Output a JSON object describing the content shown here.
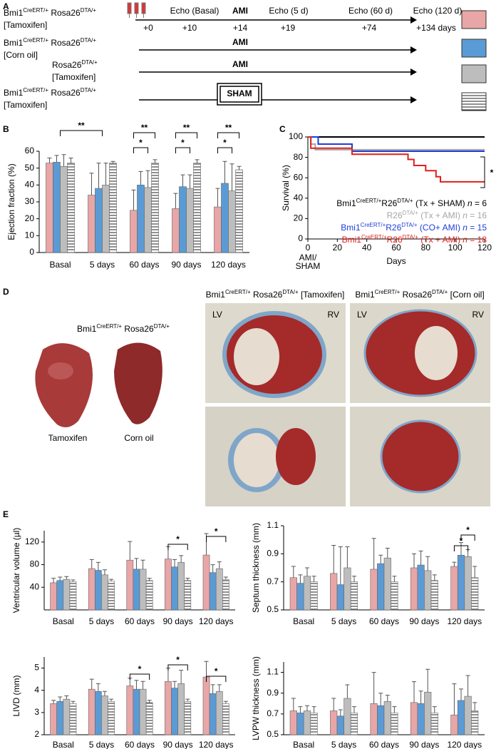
{
  "panel_labels": [
    "A",
    "B",
    "C",
    "D",
    "E"
  ],
  "timeline": {
    "start": "+0",
    "events": [
      {
        "label": "Echo (Basal)",
        "day": "+10"
      },
      {
        "label": "AMI",
        "day": "+14"
      },
      {
        "label": "Echo (5 d)",
        "day": "+19"
      },
      {
        "label": "Echo (60 d)",
        "day": "+74"
      },
      {
        "label": "Echo (120 d)",
        "day": "+134 days"
      }
    ],
    "rows": [
      {
        "genotype": [
          {
            "t": "Bmi1"
          },
          {
            "t": "CreERT/+",
            "sup": true
          },
          {
            "t": " Rosa26"
          },
          {
            "t": "DTA/+",
            "sup": true
          }
        ],
        "treatment": "[Tamoxifen]",
        "color": "#e8a6a6"
      },
      {
        "genotype": [
          {
            "t": "Bmi1"
          },
          {
            "t": "CreERT/+",
            "sup": true
          },
          {
            "t": " Rosa26"
          },
          {
            "t": "DTA/+",
            "sup": true
          }
        ],
        "treatment": "[Corn oil]",
        "event": "AMI",
        "color": "#5b9bd5"
      },
      {
        "genotype": [
          {
            "t": "Rosa26"
          },
          {
            "t": "DTA/+",
            "sup": true
          }
        ],
        "treatment": "[Tamoxifen]",
        "event": "AMI",
        "color": "#bdbdbd"
      },
      {
        "genotype": [
          {
            "t": "Bmi1"
          },
          {
            "t": "CreERT/+",
            "sup": true
          },
          {
            "t": " Rosa26"
          },
          {
            "t": "DTA/+",
            "sup": true
          }
        ],
        "treatment": "[Tamoxifen]",
        "event": "SHAM",
        "color": "#ffffff",
        "hatch": true
      }
    ]
  },
  "chart_data": [
    {
      "type": "bar",
      "y_label": "Ejection fraction (%)",
      "categories": [
        "Basal",
        "5 days",
        "60 days",
        "90 days",
        "120 days"
      ],
      "ylim": [
        0,
        60
      ],
      "yticks": [
        0,
        10,
        20,
        30,
        40,
        50,
        60
      ],
      "series": [
        {
          "color": "#e8a6a6",
          "values": [
            53,
            34,
            25,
            26,
            27
          ],
          "errors": [
            3,
            13,
            12,
            9,
            11
          ]
        },
        {
          "color": "#5b9bd5",
          "values": [
            53.5,
            38,
            40,
            39,
            41
          ],
          "errors": [
            4,
            15,
            8,
            7,
            13
          ]
        },
        {
          "color": "#bdbdbd",
          "values": [
            51,
            40,
            38.5,
            38,
            36.5
          ],
          "errors": [
            7,
            13,
            10,
            8,
            16
          ]
        },
        {
          "color": "#ffffff",
          "hatch": true,
          "values": [
            53,
            53,
            53,
            53,
            49
          ],
          "errors": [
            3,
            1,
            2,
            2,
            2
          ]
        }
      ],
      "annotations": [
        "**",
        "*",
        "**",
        "*",
        "**",
        "*",
        "**"
      ]
    },
    {
      "type": "line",
      "y_label": "Survival (%)",
      "x_label": "Days",
      "x_start_label": [
        "AMI/",
        "SHAM"
      ],
      "xlim": [
        0,
        120
      ],
      "xticks": [
        0,
        20,
        40,
        60,
        80,
        100,
        120
      ],
      "ylim": [
        0,
        100
      ],
      "yticks": [
        0,
        20,
        40,
        60,
        80,
        100
      ],
      "series": [
        {
          "name": [
            {
              "t": "Bmi1"
            },
            {
              "t": "CreERT/+",
              "sup": true
            },
            {
              "t": "R26"
            },
            {
              "t": "DTA/+",
              "sup": true
            },
            {
              "t": " (Tx + SHAM) "
            },
            {
              "t": "n",
              "italic": true
            },
            {
              "t": " = 6"
            }
          ],
          "color": "#000000",
          "x": [
            0,
            120
          ],
          "values": [
            100,
            100
          ]
        },
        {
          "name": [
            {
              "t": "R26"
            },
            {
              "t": "DTA/+",
              "sup": true
            },
            {
              "t": " (Tx + AMI) "
            },
            {
              "t": "n",
              "italic": true
            },
            {
              "t": " = 16"
            }
          ],
          "color": "#a6a6a6",
          "x": [
            0,
            2,
            2,
            5,
            5,
            120
          ],
          "values": [
            100,
            100,
            93,
            93,
            87.5,
            87.5
          ]
        },
        {
          "name": [
            {
              "t": "Bmi1"
            },
            {
              "t": "CreERT/+",
              "sup": true
            },
            {
              "t": "R26"
            },
            {
              "t": "DTA/+",
              "sup": true
            },
            {
              "t": " (CO+ AMI) "
            },
            {
              "t": "n",
              "italic": true
            },
            {
              "t": " = 15"
            }
          ],
          "color": "#1f3fd6",
          "x": [
            0,
            7,
            7,
            30,
            30,
            120
          ],
          "values": [
            100,
            100,
            93,
            93,
            86,
            86
          ]
        },
        {
          "name": [
            {
              "t": "Bmi1"
            },
            {
              "t": "CreERT/+",
              "sup": true
            },
            {
              "t": "R26"
            },
            {
              "t": "DTA/+",
              "sup": true
            },
            {
              "t": " (Tx + AMI) "
            },
            {
              "t": "n",
              "italic": true
            },
            {
              "t": " = 18"
            }
          ],
          "color": "#e0201b",
          "x": [
            0,
            2,
            2,
            30,
            30,
            68,
            68,
            72,
            72,
            80,
            80,
            87,
            87,
            90,
            90,
            120
          ],
          "values": [
            100,
            100,
            89,
            89,
            83,
            83,
            78,
            78,
            72,
            72,
            67,
            67,
            61,
            61,
            56,
            56
          ]
        }
      ],
      "annotations": [
        "*"
      ]
    },
    {
      "type": "bar",
      "y_label": "Ventricular volume (µl)",
      "categories": [
        "Basal",
        "5 days",
        "60 days",
        "90 days",
        "120 days"
      ],
      "ylim": [
        0,
        140
      ],
      "yticks": [
        40,
        80,
        120
      ],
      "series": [
        {
          "color": "#e8a6a6",
          "values": [
            48,
            73,
            88,
            90,
            97
          ],
          "errors": [
            8,
            16,
            33,
            22,
            38
          ]
        },
        {
          "color": "#5b9bd5",
          "values": [
            52,
            70,
            72,
            76,
            66
          ],
          "errors": [
            6,
            14,
            19,
            13,
            14
          ]
        },
        {
          "color": "#bdbdbd",
          "values": [
            54,
            62,
            72,
            84,
            73
          ],
          "errors": [
            5,
            9,
            16,
            12,
            12
          ]
        },
        {
          "color": "#ffffff",
          "hatch": true,
          "values": [
            50,
            51,
            52,
            52,
            54
          ],
          "errors": [
            3,
            3,
            4,
            4,
            4
          ]
        }
      ],
      "annotations": [
        "*",
        "*"
      ]
    },
    {
      "type": "bar",
      "y_label": "Septum thickness (mm)",
      "categories": [
        "Basal",
        "5 days",
        "60 days",
        "90 days",
        "120 days"
      ],
      "ylim": [
        0.5,
        1.1
      ],
      "yticks": [
        0.5,
        0.7,
        0.9,
        1.1
      ],
      "series": [
        {
          "color": "#e8a6a6",
          "values": [
            0.73,
            0.76,
            0.79,
            0.8,
            0.81
          ],
          "errors": [
            0.08,
            0.2,
            0.22,
            0.1,
            0.03
          ]
        },
        {
          "color": "#5b9bd5",
          "values": [
            0.69,
            0.68,
            0.83,
            0.82,
            0.89
          ],
          "errors": [
            0.06,
            0.27,
            0.06,
            0.1,
            0.09
          ]
        },
        {
          "color": "#bdbdbd",
          "values": [
            0.74,
            0.8,
            0.87,
            0.78,
            0.88
          ],
          "errors": [
            0.06,
            0.15,
            0.07,
            0.1,
            0.05
          ]
        },
        {
          "color": "#ffffff",
          "hatch": true,
          "values": [
            0.7,
            0.7,
            0.7,
            0.71,
            0.73
          ],
          "errors": [
            0.04,
            0.04,
            0.04,
            0.04,
            0.08
          ]
        }
      ],
      "annotations": [
        "*",
        "*"
      ]
    },
    {
      "type": "bar",
      "y_label": "LIVD (mm)",
      "categories": [
        "Basal",
        "5 days",
        "60 days",
        "90 days",
        "120 days"
      ],
      "ylim": [
        2,
        5.5
      ],
      "yticks": [
        2,
        3,
        4,
        5
      ],
      "series": [
        {
          "color": "#e8a6a6",
          "values": [
            3.4,
            4.05,
            4.2,
            4.4,
            4.6
          ],
          "errors": [
            0.15,
            0.45,
            0.35,
            0.6,
            0.7
          ]
        },
        {
          "color": "#5b9bd5",
          "values": [
            3.5,
            3.95,
            4.05,
            4.1,
            3.85
          ],
          "errors": [
            0.2,
            0.35,
            0.4,
            0.3,
            0.4
          ]
        },
        {
          "color": "#bdbdbd",
          "values": [
            3.6,
            3.75,
            4.05,
            4.3,
            3.95
          ],
          "errors": [
            0.15,
            0.2,
            0.35,
            0.6,
            0.3
          ]
        },
        {
          "color": "#ffffff",
          "hatch": true,
          "values": [
            3.4,
            3.5,
            3.45,
            3.5,
            3.4
          ],
          "errors": [
            0.1,
            0.1,
            0.1,
            0.1,
            0.1
          ]
        }
      ],
      "annotations": [
        "*",
        "*",
        "*"
      ]
    },
    {
      "type": "bar",
      "y_label": "LVPW thickness (mm)",
      "categories": [
        "Basal",
        "5 days",
        "60 days",
        "90 days",
        "120 days"
      ],
      "ylim": [
        0.5,
        1.2
      ],
      "yticks": [
        0.5,
        0.7,
        0.9,
        1.1
      ],
      "series": [
        {
          "color": "#e8a6a6",
          "values": [
            0.73,
            0.73,
            0.8,
            0.81,
            0.69
          ],
          "errors": [
            0.12,
            0.12,
            0.3,
            0.2,
            0.3
          ]
        },
        {
          "color": "#5b9bd5",
          "values": [
            0.71,
            0.68,
            0.78,
            0.8,
            0.83
          ],
          "errors": [
            0.06,
            0.06,
            0.12,
            0.12,
            0.11
          ]
        },
        {
          "color": "#bdbdbd",
          "values": [
            0.73,
            0.85,
            0.82,
            0.91,
            0.87
          ],
          "errors": [
            0.05,
            0.13,
            0.06,
            0.22,
            0.2
          ]
        },
        {
          "color": "#ffffff",
          "hatch": true,
          "values": [
            0.71,
            0.71,
            0.71,
            0.71,
            0.73
          ],
          "errors": [
            0.06,
            0.06,
            0.06,
            0.06,
            0.08
          ]
        }
      ],
      "annotations": []
    }
  ],
  "heart_photos": {
    "title": [
      {
        "t": "Bmi1"
      },
      {
        "t": "CreERT/+",
        "sup": true
      },
      {
        "t": " Rosa26"
      },
      {
        "t": "DTA/+",
        "sup": true
      }
    ],
    "captions": [
      "Tamoxifen",
      "Corn oil"
    ]
  },
  "histology": {
    "columns": [
      {
        "header": [
          {
            "t": "Bmi1"
          },
          {
            "t": "CreERT/+",
            "sup": true
          },
          {
            "t": " Rosa26"
          },
          {
            "t": "DTA/+",
            "sup": true
          },
          {
            "t": " [Tamoxifen]"
          }
        ],
        "lv": "LV",
        "rv": "RV"
      },
      {
        "header": [
          {
            "t": "Bmi1"
          },
          {
            "t": "CreERT/+",
            "sup": true
          },
          {
            "t": " Rosa26"
          },
          {
            "t": "DTA/+",
            "sup": true
          },
          {
            "t": " [Corn oil]"
          }
        ],
        "lv": "LV",
        "rv": "RV"
      }
    ]
  }
}
